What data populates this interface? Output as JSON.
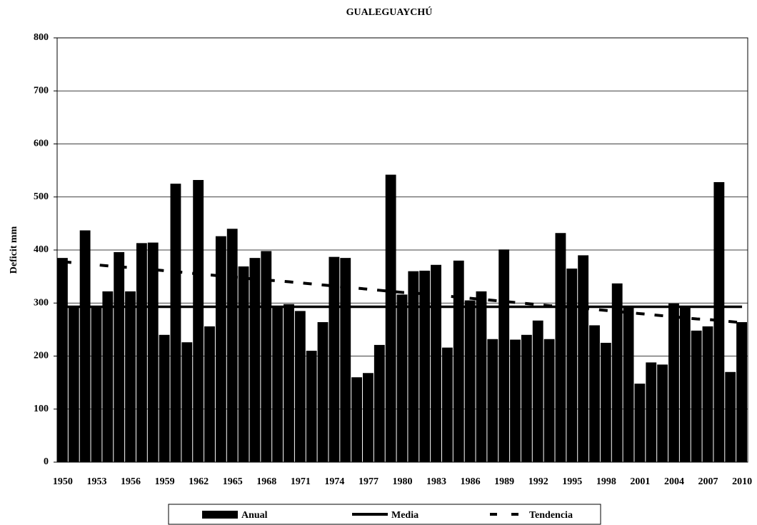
{
  "chart_data": {
    "type": "bar",
    "title": "GUALEGUAYCHÚ",
    "y_label": "Deficit mm",
    "categories": [
      "1950",
      null,
      null,
      "1953",
      null,
      null,
      "1956",
      null,
      null,
      "1959",
      null,
      null,
      "1962",
      null,
      null,
      "1965",
      null,
      null,
      "1968",
      null,
      null,
      "1971",
      null,
      null,
      "1974",
      null,
      null,
      "1977",
      null,
      null,
      "1980",
      null,
      null,
      "1983",
      null,
      null,
      "1986",
      null,
      null,
      "1989",
      null,
      null,
      "1992",
      null,
      null,
      "1995",
      null,
      null,
      "1998",
      null,
      null,
      "2001",
      null,
      null,
      "2004",
      null,
      null,
      "2007",
      null,
      null,
      "2010"
    ],
    "series": [
      {
        "name": "Anual",
        "kind": "bar",
        "color": "#000000",
        "values": [
          385,
          293,
          437,
          293,
          322,
          396,
          322,
          413,
          414,
          240,
          525,
          226,
          532,
          256,
          426,
          440,
          369,
          385,
          398,
          293,
          298,
          285,
          210,
          264,
          387,
          385,
          160,
          168,
          221,
          542,
          316,
          360,
          361,
          372,
          216,
          380,
          305,
          322,
          232,
          401,
          231,
          240,
          267,
          232,
          432,
          365,
          390,
          258,
          225,
          337,
          293,
          148,
          188,
          184,
          299,
          293,
          248,
          256,
          528,
          170,
          264
        ]
      },
      {
        "name": "Media",
        "kind": "line",
        "color": "#000000",
        "values": [
          293,
          293,
          293,
          293,
          293,
          293,
          293,
          293,
          293,
          293,
          293,
          293,
          293,
          293,
          293,
          293,
          293,
          293,
          293,
          293,
          293,
          293,
          293,
          293,
          293,
          293,
          293,
          293,
          293,
          293,
          293,
          293,
          293,
          293,
          293,
          293,
          293,
          293,
          293,
          293,
          293,
          293,
          293,
          293,
          293,
          293,
          293,
          293,
          293,
          293,
          293,
          293,
          293,
          293,
          293,
          293,
          293,
          293,
          293,
          293,
          293
        ]
      },
      {
        "name": "Tendencia",
        "kind": "dashed",
        "color": "#000000",
        "values": [
          378,
          376,
          374,
          372,
          370,
          368,
          367,
          365,
          363,
          361,
          359,
          357,
          355,
          353,
          351,
          349,
          347,
          345,
          343,
          342,
          340,
          338,
          336,
          334,
          332,
          330,
          328,
          326,
          324,
          322,
          320,
          319,
          317,
          315,
          313,
          311,
          309,
          307,
          305,
          303,
          301,
          299,
          297,
          295,
          294,
          292,
          290,
          288,
          286,
          284,
          282,
          280,
          278,
          276,
          274,
          272,
          270,
          269,
          267,
          265,
          263
        ]
      }
    ],
    "ylim": [
      0,
      800
    ],
    "yticks": [
      0,
      100,
      200,
      300,
      400,
      500,
      600,
      700,
      800
    ],
    "grid": true
  }
}
